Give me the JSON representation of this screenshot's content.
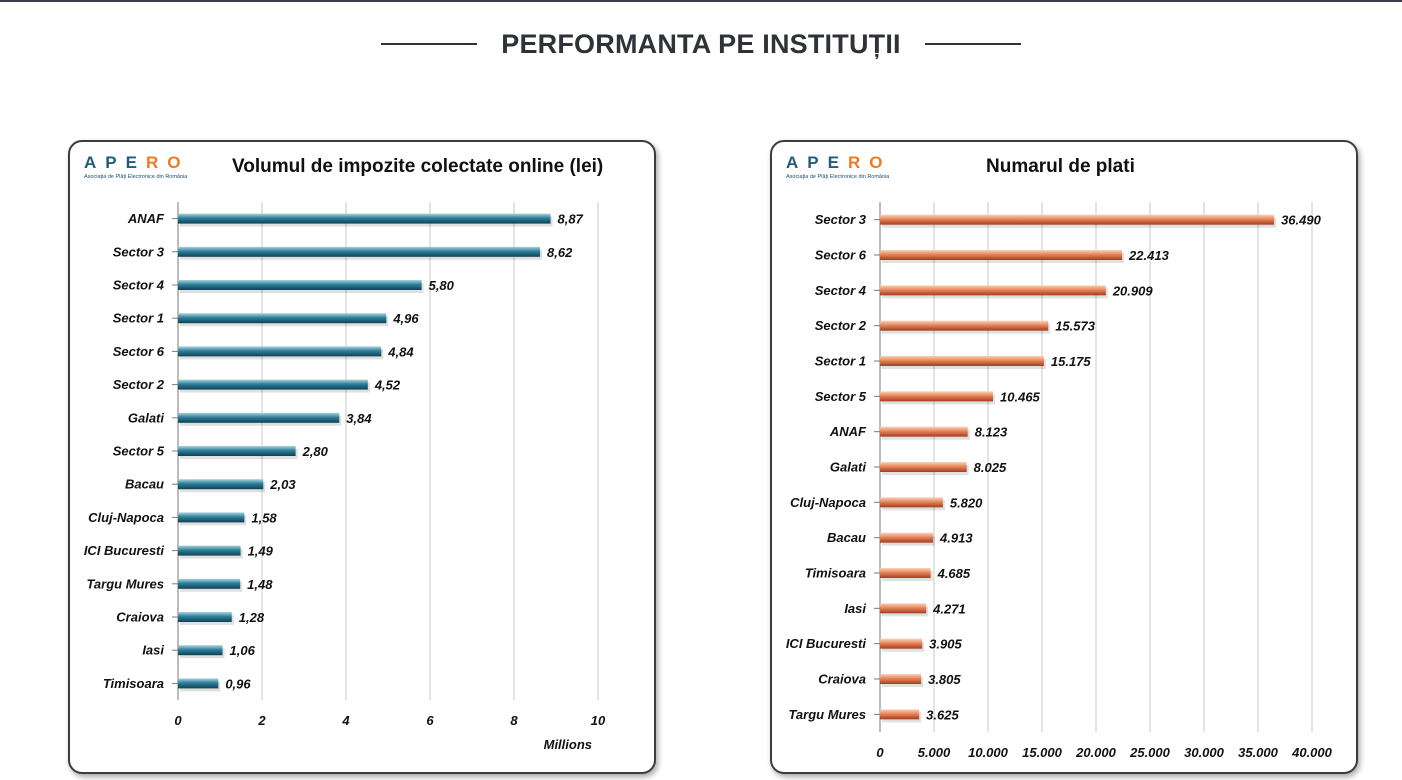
{
  "page": {
    "section_title": "PERFORMANTA PE INSTITUȚII"
  },
  "logo": {
    "text": "APERO",
    "subtitle": "Asociația de Plăți Electronice din România",
    "colors": {
      "primary": "#1f5d7a",
      "accent": "#f07a22"
    }
  },
  "chart_data": [
    {
      "type": "bar",
      "orientation": "horizontal",
      "title": "Volumul de impozite colectate online (lei)",
      "xlabel": "Millions",
      "ylabel": "",
      "xlim": [
        0,
        10
      ],
      "ticks": [
        "0",
        "2",
        "4",
        "6",
        "8",
        "10"
      ],
      "tick_values": [
        0,
        2,
        4,
        6,
        8,
        10
      ],
      "grid": "vertical",
      "bar_color": "#2e7f99",
      "categories": [
        "ANAF",
        "Sector 3",
        "Sector 4",
        "Sector 1",
        "Sector 6",
        "Sector 2",
        "Galati",
        "Sector 5",
        "Bacau",
        "Cluj-Napoca",
        "ICI Bucuresti",
        "Targu Mures",
        "Craiova",
        "Iasi",
        "Timisoara"
      ],
      "values": [
        8.87,
        8.62,
        5.8,
        4.96,
        4.84,
        4.52,
        3.84,
        2.8,
        2.03,
        1.58,
        1.49,
        1.48,
        1.28,
        1.06,
        0.96
      ],
      "labels": [
        "8,87",
        "8,62",
        "5,80",
        "4,96",
        "4,84",
        "4,52",
        "3,84",
        "2,80",
        "2,03",
        "1,58",
        "1,49",
        "1,48",
        "1,28",
        "1,06",
        "0,96"
      ]
    },
    {
      "type": "bar",
      "orientation": "horizontal",
      "title": "Numarul de plati",
      "xlabel": "",
      "ylabel": "",
      "xlim": [
        0,
        40000
      ],
      "ticks": [
        "0",
        "5.000",
        "10.000",
        "15.000",
        "20.000",
        "25.000",
        "30.000",
        "35.000",
        "40.000"
      ],
      "tick_values": [
        0,
        5000,
        10000,
        15000,
        20000,
        25000,
        30000,
        35000,
        40000
      ],
      "grid": "vertical",
      "bar_color": "#d9704a",
      "categories": [
        "Sector 3",
        "Sector 6",
        "Sector 4",
        "Sector 2",
        "Sector 1",
        "Sector 5",
        "ANAF",
        "Galati",
        "Cluj-Napoca",
        "Bacau",
        "Timisoara",
        "Iasi",
        "ICI Bucuresti",
        "Craiova",
        "Targu Mures"
      ],
      "values": [
        36490,
        22413,
        20909,
        15573,
        15175,
        10465,
        8123,
        8025,
        5820,
        4913,
        4685,
        4271,
        3905,
        3805,
        3625
      ],
      "labels": [
        "36.490",
        "22.413",
        "20.909",
        "15.573",
        "15.175",
        "10.465",
        "8.123",
        "8.025",
        "5.820",
        "4.913",
        "4.685",
        "4.271",
        "3.905",
        "3.805",
        "3.625"
      ]
    }
  ]
}
